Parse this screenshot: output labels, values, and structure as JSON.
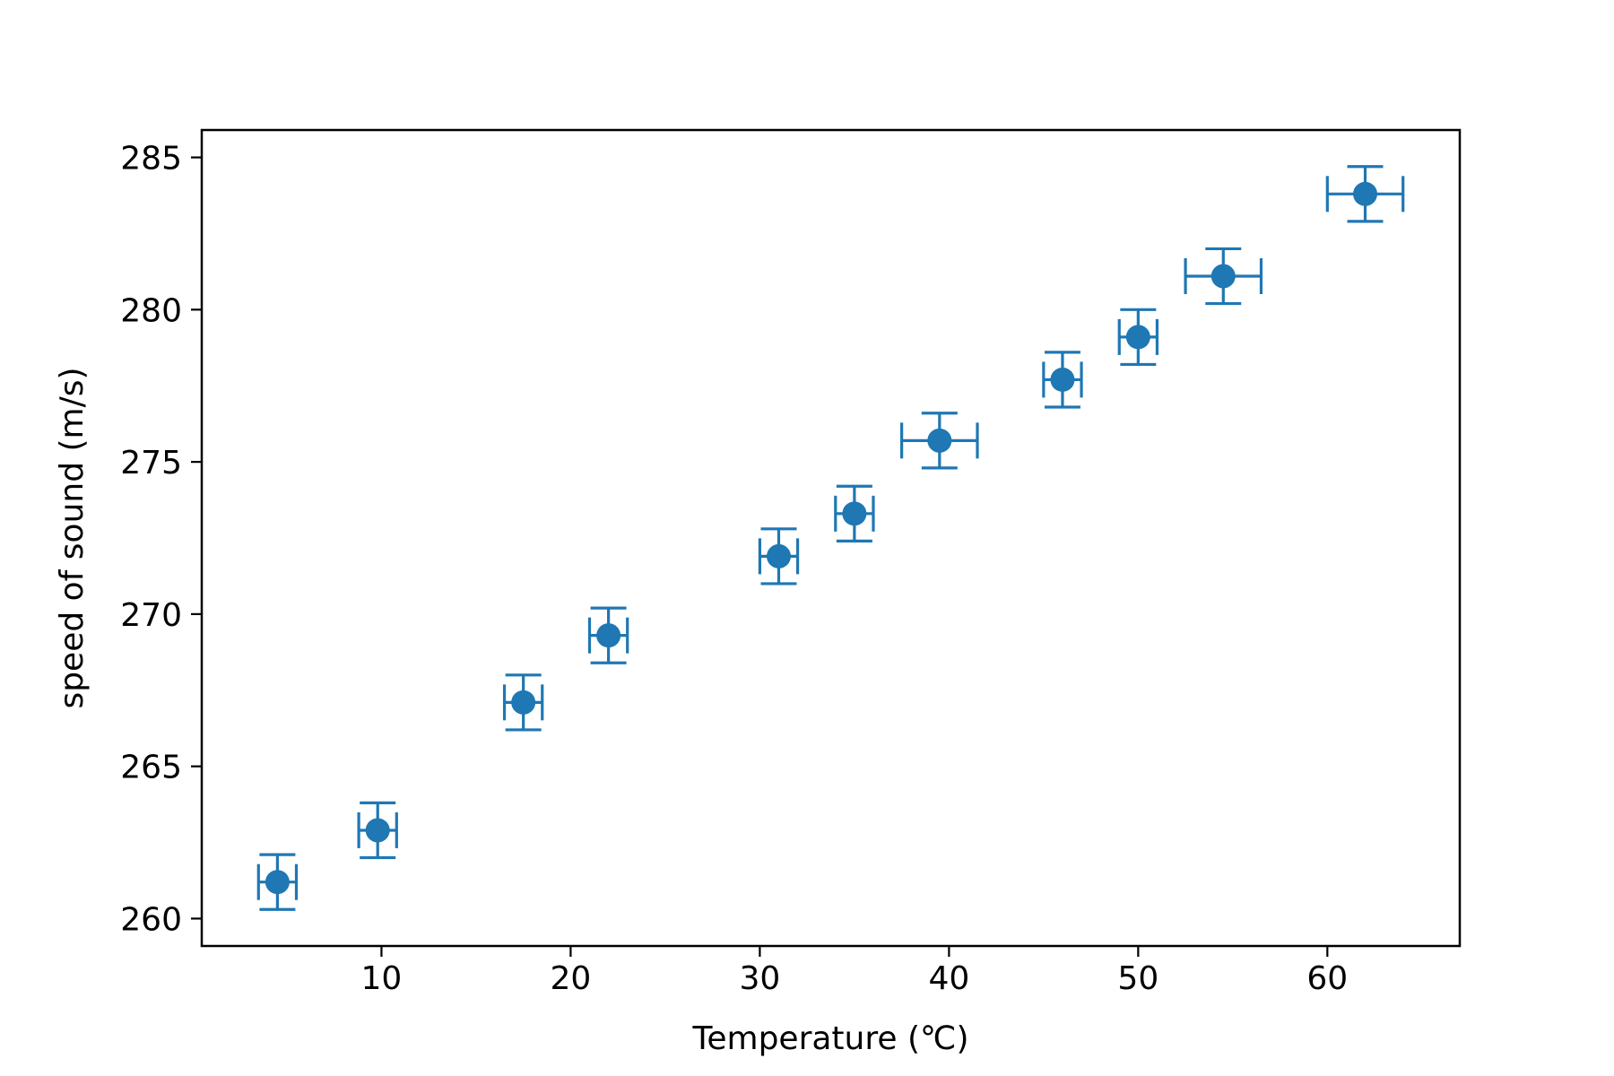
{
  "chart_data": {
    "type": "scatter",
    "title": "",
    "xlabel": "Temperature (℃)",
    "ylabel": "speed of sound (m/s)",
    "xlim": [
      0.5,
      67
    ],
    "ylim": [
      259.1,
      285.9
    ],
    "xticks": [
      10,
      20,
      30,
      40,
      50,
      60
    ],
    "yticks": [
      260,
      265,
      270,
      275,
      280,
      285
    ],
    "grid": false,
    "legend": "none",
    "color": "#1f77b4",
    "series": [
      {
        "points": [
          {
            "x": 4.5,
            "y": 261.2,
            "xerr": 1.0,
            "yerr": 0.9
          },
          {
            "x": 9.8,
            "y": 262.9,
            "xerr": 1.0,
            "yerr": 0.9
          },
          {
            "x": 17.5,
            "y": 267.1,
            "xerr": 1.0,
            "yerr": 0.9
          },
          {
            "x": 22.0,
            "y": 269.3,
            "xerr": 1.0,
            "yerr": 0.9
          },
          {
            "x": 31.0,
            "y": 271.9,
            "xerr": 1.0,
            "yerr": 0.9
          },
          {
            "x": 35.0,
            "y": 273.3,
            "xerr": 1.0,
            "yerr": 0.9
          },
          {
            "x": 39.5,
            "y": 275.7,
            "xerr": 2.0,
            "yerr": 0.9
          },
          {
            "x": 46.0,
            "y": 277.7,
            "xerr": 1.0,
            "yerr": 0.9
          },
          {
            "x": 50.0,
            "y": 279.1,
            "xerr": 1.0,
            "yerr": 0.9
          },
          {
            "x": 54.5,
            "y": 281.1,
            "xerr": 2.0,
            "yerr": 0.9
          },
          {
            "x": 62.0,
            "y": 283.8,
            "xerr": 2.0,
            "yerr": 0.9
          }
        ]
      }
    ]
  }
}
